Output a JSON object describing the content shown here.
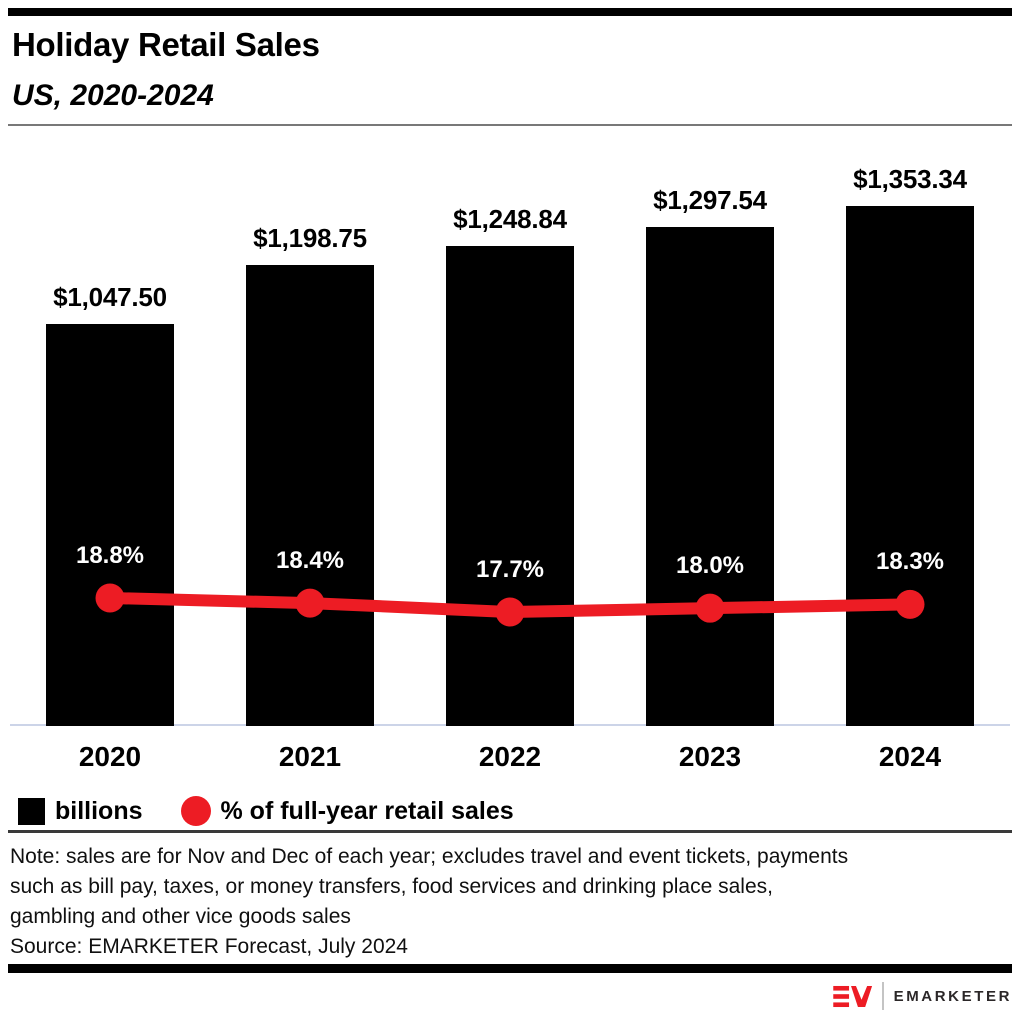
{
  "header": {
    "title": "Holiday Retail Sales",
    "subtitle": "US, 2020-2024"
  },
  "chart_data": {
    "type": "bar",
    "subtype": "combo-bar-line",
    "categories": [
      "2020",
      "2021",
      "2022",
      "2023",
      "2024"
    ],
    "series": [
      {
        "name": "billions",
        "type": "bar",
        "values": [
          1047.5,
          1198.75,
          1248.84,
          1297.54,
          1353.34
        ],
        "labels": [
          "$1,047.50",
          "$1,198.75",
          "$1,248.84",
          "$1,297.54",
          "$1,353.34"
        ],
        "color": "#000000"
      },
      {
        "name": "% of full-year retail sales",
        "type": "line",
        "values": [
          18.8,
          18.4,
          17.7,
          18.0,
          18.3
        ],
        "labels": [
          "18.8%",
          "18.4%",
          "17.7%",
          "18.0%",
          "18.3%"
        ],
        "color": "#ed1c24"
      }
    ],
    "title": "Holiday Retail Sales",
    "subtitle": "US, 2020-2024",
    "xlabel": "",
    "ylabel": "",
    "ylim": [
      0,
      1400
    ],
    "grid": false,
    "legend_position": "bottom",
    "data_labels": true
  },
  "legend": {
    "items": [
      {
        "label": "billions",
        "swatch": "square",
        "color": "#000000"
      },
      {
        "label": "% of full-year retail sales",
        "swatch": "circle",
        "color": "#ed1c24"
      }
    ]
  },
  "note": {
    "lines": [
      "Note: sales are for Nov and Dec of each year; excludes travel and event tickets, payments",
      "such as bill pay, taxes, or money transfers, food services and drinking place sales,",
      "gambling and other vice goods sales"
    ]
  },
  "source": "Source: EMARKETER Forecast, July 2024",
  "footer": {
    "logo_monogram": "EM",
    "logo_text": "EMARKETER"
  },
  "colors": {
    "accent_red": "#ed1c24",
    "bar_black": "#000000",
    "axis_line": "#ccd4e8",
    "header_rule": "#787878",
    "legend_rule": "#3a3a3a"
  }
}
